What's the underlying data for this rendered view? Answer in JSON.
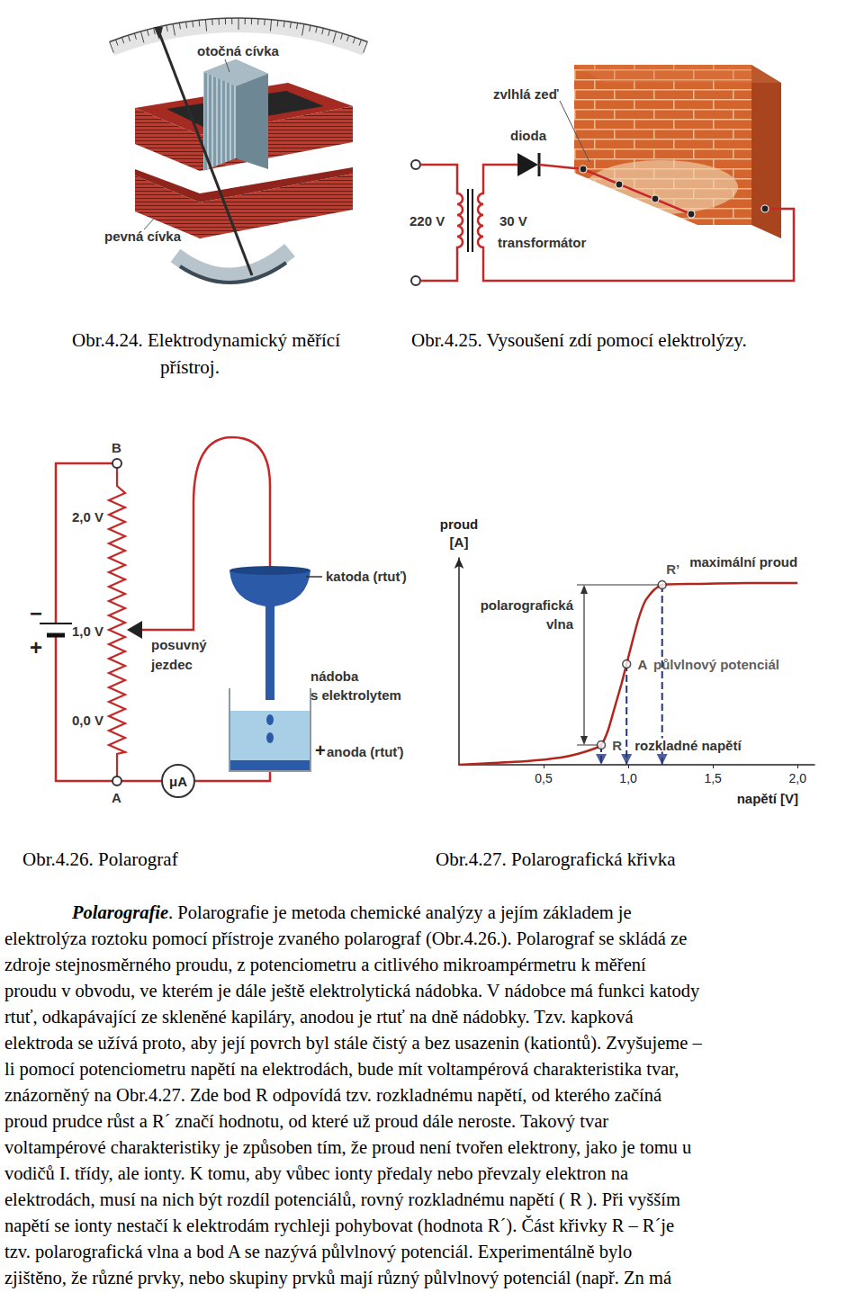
{
  "figures": [
    {
      "caption": [
        "Obr.4.24. Elektrodynamický měřící",
        "přístroj."
      ],
      "labels": {
        "moving_coil": "otočná cívka",
        "fixed_coil": "pevná cívka"
      }
    },
    {
      "caption": [
        "Obr.4.25. Vysoušení zdí pomocí elektrolýzy."
      ],
      "labels": {
        "wall": "zvlhlá zeď",
        "diode": "dioda",
        "primary": "220 V",
        "secondary": "30 V",
        "transformer": "transformátor"
      }
    },
    {
      "caption": [
        "Obr.4.26. Polarograf"
      ],
      "labels": {
        "terminal_top": "B",
        "terminal_bottom": "A",
        "v_top": "2,0 V",
        "v_mid": "1,0 V",
        "v_bottom": "0,0 V",
        "battery_minus": "−",
        "battery_plus": "+",
        "slider": [
          "posuvný",
          "jezdec"
        ],
        "cathode": "katoda (rtuť)",
        "vessel": [
          "nádoba",
          "s elektrolytem"
        ],
        "anode_sign": "+",
        "anode": "anoda (rtuť)",
        "meter": "μA"
      }
    }
  ],
  "chart_data": {
    "type": "line",
    "caption": "Obr.4.27. Polarografická křivka",
    "x_label": "napětí [V]",
    "y_label": [
      "proud",
      "[A]"
    ],
    "color": "#b3261e",
    "x": [
      0,
      0.2,
      0.4,
      0.6,
      0.7,
      0.8,
      0.84,
      0.88,
      0.92,
      0.96,
      0.99,
      1.02,
      1.06,
      1.1,
      1.15,
      1.2,
      1.4,
      1.7,
      2.0
    ],
    "values": [
      0,
      1,
      2,
      4,
      6,
      9,
      11,
      19,
      32,
      45,
      56,
      67,
      81,
      91,
      97,
      100,
      100.5,
      101,
      101
    ],
    "xlim": [
      0,
      2.1
    ],
    "ylim": [
      0,
      115
    ],
    "xticks": [
      {
        "value": 0.5,
        "label": "0,5"
      },
      {
        "value": 1,
        "label": "1,0"
      },
      {
        "value": 1.5,
        "label": "1,5"
      },
      {
        "value": 2,
        "label": "2,0"
      }
    ],
    "yticks": [],
    "grid": false,
    "tick_labels": "x",
    "points": [
      {
        "label": "R",
        "x": 0.84,
        "y": 11
      },
      {
        "label": "A",
        "x": 0.99,
        "y": 56,
        "note": "půlvlnový potenciál"
      },
      {
        "label": "R’",
        "x": 1.2,
        "y": 100
      }
    ],
    "annotations": {
      "wave": [
        "polarografická",
        "vlna"
      ],
      "max_current": "maximální proud",
      "decomposition": "rozkladné napětí"
    }
  },
  "text": {
    "heading": "Polarografie",
    "lines": [
      ". Polarografie je metoda chemické analýzy a jejím základem je",
      "elektrolýza roztoku pomocí přístroje zvaného polarograf (Obr.4.26.). Polarograf se skládá ze",
      "zdroje stejnosměrného proudu, z potenciometru a citlivého mikroampérmetru k měření",
      "proudu v obvodu, ve kterém je dále ještě elektrolytická nádobka. V nádobce má funkci katody",
      "rtuť, odkapávající ze skleněné kapiláry, anodou je rtuť na dně nádobky. Tzv. kapková",
      "elektroda se užívá proto, aby její povrch byl stále čistý a bez usazenin (kationtů). Zvyšujeme –",
      "li pomocí potenciometru napětí na elektrodách, bude mít voltampérová charakteristika tvar,",
      "znázorněný na Obr.4.27. Zde bod R odpovídá tzv. rozkladnému napětí, od kterého začíná",
      "proud prudce růst a R´ značí hodnotu, od které už proud dále neroste. Takový tvar",
      "voltampérové charakteristiky je způsoben tím, že proud není tvořen elektrony, jako je tomu u",
      "vodičů I. třídy, ale ionty. K tomu, aby vůbec ionty předaly nebo převzaly elektron na",
      "elektrodách, musí na nich být rozdíl potenciálů, rovný rozkladnému napětí ( R ). Při vyšším",
      "napětí se ionty nestačí k elektrodám rychleji pohybovat (hodnota R´). Část křivky R – R´je",
      "tzv. polarografická vlna a bod A se nazývá půlvlnový potenciál. Experimentálně bylo",
      "zjištěno, že různé prvky, nebo skupiny prvků mají různý půlvlnový potenciál (např. Zn má"
    ]
  }
}
